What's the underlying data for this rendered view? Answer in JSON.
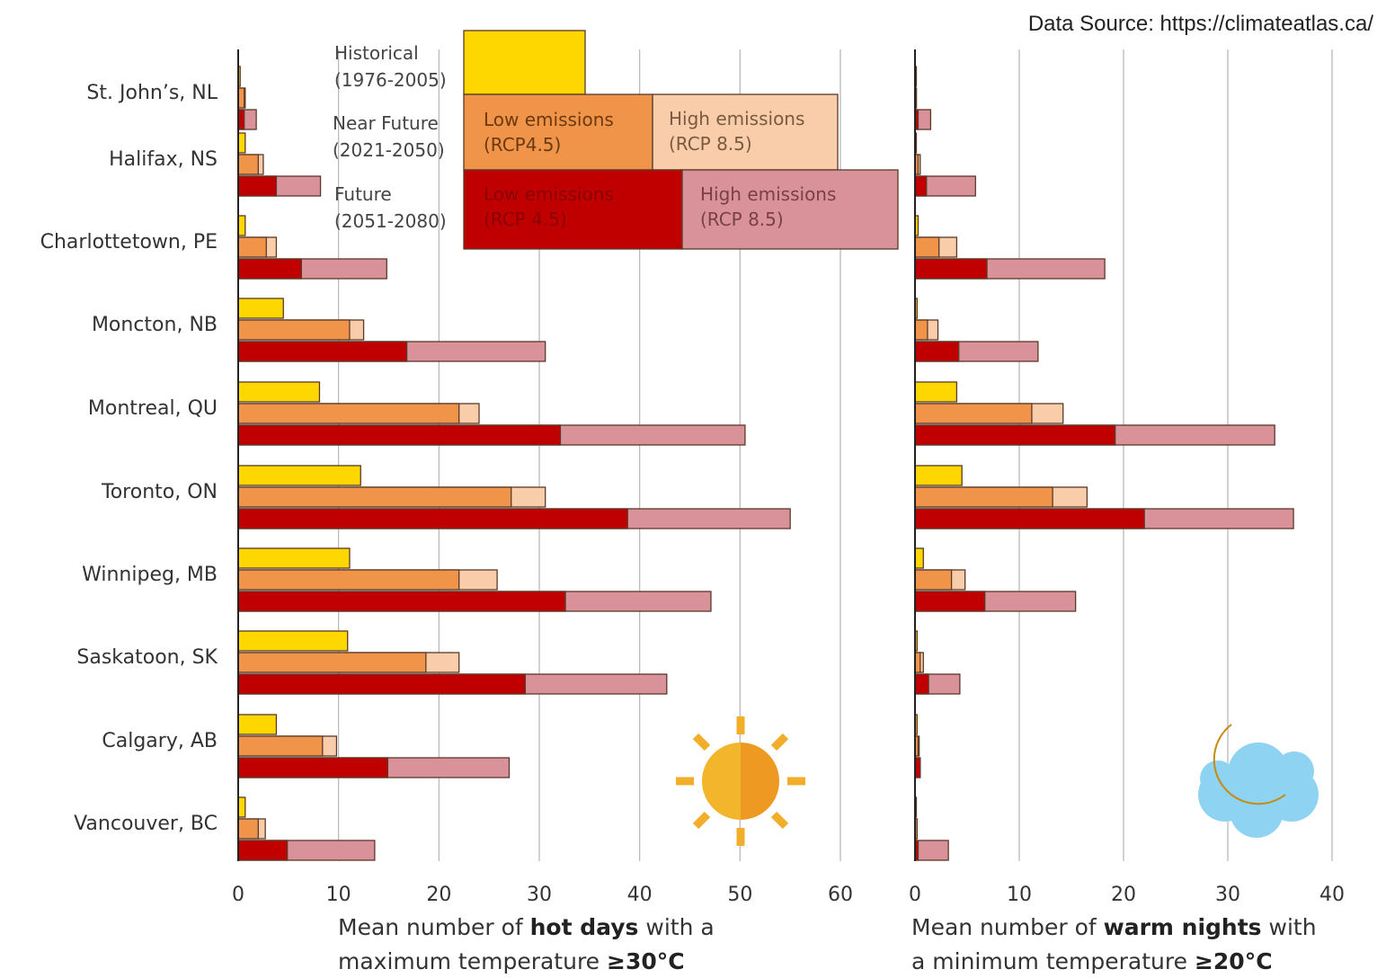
{
  "source": "Data Source: https://climateatlas.ca/",
  "colors": {
    "historical": "#FFD700",
    "near_low": "#F0944A",
    "near_high": "#F9CDAA",
    "future_low": "#C00000",
    "future_high": "#D9929A"
  },
  "legend": {
    "rows": [
      {
        "line1": "Historical",
        "line2": "(1976-2005)"
      },
      {
        "line1": "Near Future",
        "line2": "(2021-2050)"
      },
      {
        "line1": "Future",
        "line2": "(2051-2080)"
      }
    ],
    "near_low": {
      "line1": "Low emissions",
      "line2": "(RCP4.5)"
    },
    "near_high": {
      "line1": "High emissions",
      "line2": "(RCP 8.5)"
    },
    "future_low": {
      "line1": "Low emissions",
      "line2": "(RCP 4.5)"
    },
    "future_high": {
      "line1": "High emissions",
      "line2": "(RCP 8.5)"
    }
  },
  "icons": {
    "left": "sun-icon",
    "right": "moon-cloud-icon"
  },
  "chart_data": [
    {
      "type": "bar",
      "orientation": "horizontal",
      "xlabel_parts": [
        "Mean number of ",
        "hot days",
        " with a",
        "maximum temperature ",
        "≥30°C"
      ],
      "xlim": [
        0,
        60
      ],
      "xticks": [
        0,
        10,
        20,
        30,
        40,
        50,
        60
      ],
      "grid": true,
      "categories": [
        "St. John’s, NL",
        "Halifax, NS",
        "Charlottetown, PE",
        "Moncton, NB",
        "Montreal, QU",
        "Toronto, ON",
        "Winnipeg, MB",
        "Saskatoon, SK",
        "Calgary, AB",
        "Vancouver, BC"
      ],
      "historical": [
        0.2,
        0.7,
        0.7,
        4.5,
        8.1,
        12.2,
        11.1,
        10.9,
        3.8,
        0.7
      ],
      "near_low": [
        0.6,
        2.0,
        2.8,
        11.1,
        22.0,
        27.2,
        22.0,
        18.7,
        8.4,
        2.0
      ],
      "near_high": [
        0.7,
        2.5,
        3.8,
        12.5,
        24.0,
        30.6,
        25.8,
        22.0,
        9.8,
        2.7
      ],
      "future_low": [
        0.6,
        3.8,
        6.3,
        16.8,
        32.1,
        38.8,
        32.6,
        28.6,
        14.9,
        4.9
      ],
      "future_high": [
        1.8,
        8.2,
        14.8,
        30.6,
        50.5,
        55.0,
        47.1,
        42.7,
        27.0,
        13.6
      ]
    },
    {
      "type": "bar",
      "orientation": "horizontal",
      "xlabel_parts": [
        "Mean number of ",
        "warm nights",
        " with",
        "a minimum temperature ",
        "≥20°C"
      ],
      "xlim": [
        0,
        40
      ],
      "xticks": [
        0,
        10,
        20,
        30,
        40
      ],
      "grid": true,
      "categories": [
        "St. John’s, NL",
        "Halifax, NS",
        "Charlottetown, PE",
        "Moncton, NB",
        "Montreal, QU",
        "Toronto, ON",
        "Winnipeg, MB",
        "Saskatoon, SK",
        "Calgary, AB",
        "Vancouver, BC"
      ],
      "historical": [
        0.1,
        0.1,
        0.3,
        0.2,
        4.0,
        4.5,
        0.8,
        0.2,
        0.2,
        0.1
      ],
      "near_low": [
        0.1,
        0.3,
        2.3,
        1.2,
        11.2,
        13.2,
        3.5,
        0.5,
        0.3,
        0.2
      ],
      "near_high": [
        0.1,
        0.5,
        4.0,
        2.2,
        14.2,
        16.5,
        4.8,
        0.8,
        0.4,
        0.2
      ],
      "future_low": [
        0.3,
        1.1,
        6.9,
        4.2,
        19.2,
        22.0,
        6.7,
        1.3,
        0.5,
        0.3
      ],
      "future_high": [
        1.5,
        5.8,
        18.2,
        11.8,
        34.5,
        36.3,
        15.4,
        4.3,
        0.5,
        3.2
      ]
    }
  ]
}
